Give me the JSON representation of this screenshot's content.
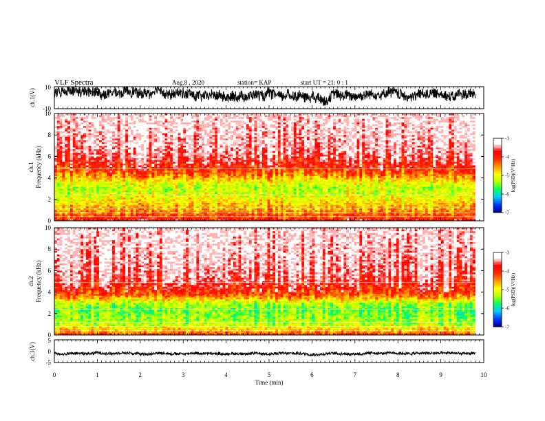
{
  "header": {
    "title": "VLF Spectra",
    "date": "Aug.8 , 2020",
    "station": "station= KAP",
    "start": "start UT = 21: 0 : 1"
  },
  "colors": {
    "background": "#ffffff",
    "ink": "#000000",
    "colormap": [
      "#00008b",
      "#0033ff",
      "#00c8ff",
      "#00ff66",
      "#b4ff00",
      "#ffff00",
      "#ff9900",
      "#ff2a00",
      "#ff0000",
      "#ffffff"
    ]
  },
  "chart_data": [
    {
      "type": "line",
      "panel": "ch1-waveform",
      "ylabel": "ch.1(V)",
      "ylim": [
        -10,
        10
      ],
      "y_ticks": [
        "10",
        "-10"
      ],
      "xlim": [
        0,
        10
      ],
      "x_extent_min": 9.8,
      "description_of_signal": "noisy waveform fluctuating mostly between about -5 and 10 V"
    },
    {
      "type": "heatmap",
      "panel": "ch1-spectrogram",
      "ylabel": "ch.1\nFrequency (kHz)",
      "ylim": [
        0,
        10
      ],
      "y_ticks": [
        "0",
        "2",
        "4",
        "6",
        "8",
        "10"
      ],
      "xlim": [
        0,
        10
      ],
      "x_extent_min": 9.8,
      "profile_freq_khz": [
        0.0,
        0.5,
        1.0,
        1.5,
        2.0,
        2.5,
        3.0,
        3.5,
        4.0,
        4.5,
        5.0,
        6.0,
        7.0,
        8.0,
        9.0,
        10.0
      ],
      "profile_logpsd": [
        -3.9,
        -4.3,
        -4.6,
        -4.8,
        -5.0,
        -5.2,
        -5.3,
        -5.1,
        -4.7,
        -4.3,
        -4.0,
        -3.6,
        -3.4,
        -3.3,
        -3.2,
        -3.1
      ],
      "colorbar": {
        "label": "log(PSD)(V²/Hz)",
        "range": [
          -7,
          -3
        ],
        "ticks": [
          "-3",
          "-4",
          "-5",
          "-6",
          "-7"
        ]
      }
    },
    {
      "type": "heatmap",
      "panel": "ch2-spectrogram",
      "ylabel": "ch.2\nFrequency (kHz)",
      "ylim": [
        0,
        10
      ],
      "y_ticks": [
        "0",
        "2",
        "4",
        "6",
        "8",
        "10"
      ],
      "xlim": [
        0,
        10
      ],
      "x_extent_min": 9.8,
      "profile_freq_khz": [
        0.0,
        0.5,
        1.0,
        1.5,
        2.0,
        2.5,
        3.0,
        3.5,
        4.0,
        4.5,
        5.0,
        6.0,
        7.0,
        8.0,
        9.0,
        10.0
      ],
      "profile_logpsd": [
        -4.2,
        -4.8,
        -5.3,
        -5.4,
        -5.5,
        -5.5,
        -5.3,
        -4.6,
        -4.1,
        -3.9,
        -3.7,
        -3.5,
        -3.4,
        -3.3,
        -3.2,
        -3.1
      ],
      "colorbar": {
        "label": "log(PSD)(V²/Hz)",
        "range": [
          -7,
          -3
        ],
        "ticks": [
          "-3",
          "-4",
          "-5",
          "-6",
          "-7"
        ]
      }
    },
    {
      "type": "line",
      "panel": "ch3-waveform",
      "ylabel": "ch.3(V)",
      "ylim": [
        -5,
        5
      ],
      "y_ticks": [
        "5",
        "0",
        "-5"
      ],
      "xlim": [
        0,
        10
      ],
      "x_extent_min": 9.8,
      "description_of_signal": "dense oscillation centred near -1 V"
    }
  ],
  "x_axis": {
    "label": "Time (min)",
    "ticks": [
      "0",
      "1",
      "2",
      "3",
      "4",
      "5",
      "6",
      "7",
      "8",
      "9",
      "10"
    ]
  }
}
